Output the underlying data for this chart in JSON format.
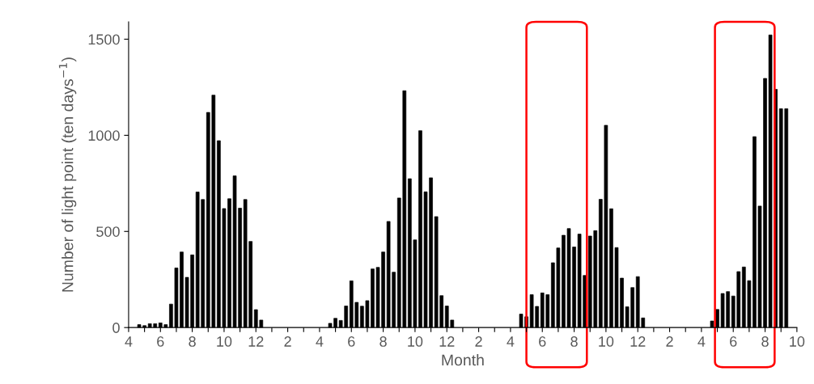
{
  "chart_data": {
    "type": "bar",
    "xlabel": "Month",
    "ylabel": "Number of light point (ten days$^{−1}$)",
    "categories": [
      "4",
      null,
      null,
      null,
      null,
      null,
      "6",
      null,
      null,
      null,
      null,
      null,
      "8",
      null,
      null,
      null,
      null,
      null,
      "10",
      null,
      null,
      null,
      null,
      null,
      "12",
      null,
      null,
      null,
      null,
      null,
      "2",
      null,
      null,
      null,
      null,
      null,
      "4",
      null,
      null,
      null,
      null,
      null,
      "6",
      null,
      null,
      null,
      null,
      null,
      "8",
      null,
      null,
      null,
      null,
      null,
      "10",
      null,
      null,
      null,
      null,
      null,
      "12",
      null,
      null,
      null,
      null,
      null,
      "2",
      null,
      null,
      null,
      null,
      null,
      "4",
      null,
      null,
      null,
      null,
      null,
      "6",
      null,
      null,
      null,
      null,
      null,
      "8",
      null,
      null,
      null,
      null,
      null,
      "10",
      null,
      null,
      null,
      null,
      null,
      "12",
      null,
      null,
      null,
      null,
      null,
      "2",
      null,
      null,
      null,
      null,
      null,
      "4",
      null,
      null,
      null,
      null,
      null,
      "6",
      null,
      null,
      null,
      null,
      null,
      "8",
      null,
      null,
      null,
      null,
      null,
      "10"
    ],
    "values": [
      null,
      null,
      15,
      10,
      20,
      20,
      24,
      15,
      122,
      310,
      393,
      261,
      378,
      705,
      666,
      1119,
      1209,
      972,
      619,
      670,
      789,
      621,
      666,
      448,
      93,
      39,
      null,
      null,
      null,
      null,
      null,
      null,
      null,
      null,
      null,
      null,
      null,
      null,
      22,
      48,
      37,
      112,
      243,
      131,
      111,
      140,
      305,
      313,
      393,
      552,
      288,
      674,
      1232,
      774,
      456,
      1024,
      706,
      779,
      577,
      166,
      112,
      39,
      null,
      null,
      null,
      null,
      null,
      null,
      null,
      null,
      null,
      null,
      null,
      null,
      70,
      56,
      171,
      110,
      180,
      171,
      337,
      414,
      480,
      515,
      419,
      486,
      271,
      476,
      504,
      667,
      1052,
      618,
      416,
      257,
      108,
      208,
      265,
      50,
      null,
      null,
      null,
      null,
      null,
      null,
      null,
      null,
      null,
      null,
      null,
      null,
      34,
      94,
      177,
      187,
      164,
      291,
      315,
      244,
      993,
      632,
      1296,
      1522,
      1239,
      1138,
      1138,
      null,
      null
    ],
    "color": "#000000",
    "ylim": [
      0,
      1590
    ],
    "yticks": [
      0,
      500,
      1000,
      1500
    ]
  }
}
